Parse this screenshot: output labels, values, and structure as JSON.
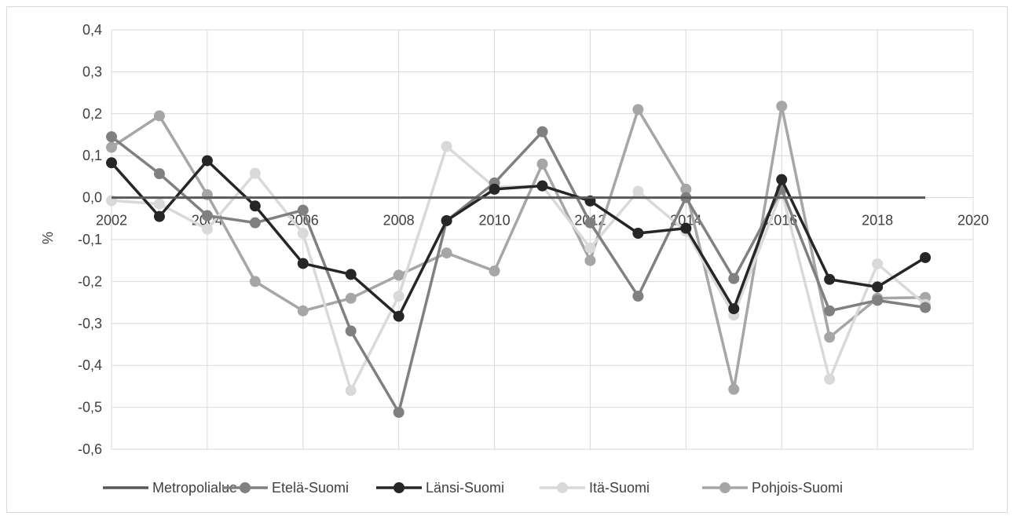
{
  "chart_data": {
    "type": "line",
    "title": "",
    "xlabel": "",
    "ylabel": "%",
    "xlim": [
      2002,
      2020
    ],
    "ylim": [
      -0.6,
      0.4
    ],
    "x_ticks": [
      2002,
      2004,
      2006,
      2008,
      2010,
      2012,
      2014,
      2016,
      2018,
      2020
    ],
    "x_tick_labels": [
      "2002",
      "2004",
      "2006",
      "2008",
      "2010",
      "2012",
      "2014",
      "2016",
      "2018",
      "2020"
    ],
    "y_ticks": [
      0.4,
      0.3,
      0.2,
      0.1,
      0.0,
      -0.1,
      -0.2,
      -0.3,
      -0.4,
      -0.5,
      -0.6
    ],
    "y_tick_labels": [
      "0,4",
      "0,3",
      "0,2",
      "0,1",
      "0,0",
      "-0,1",
      "-0,2",
      "-0,3",
      "-0,4",
      "-0,5",
      "-0,6"
    ],
    "grid": "vertical and horizontal",
    "legend_position": "bottom",
    "x": [
      2002,
      2003,
      2004,
      2005,
      2006,
      2007,
      2008,
      2009,
      2010,
      2011,
      2012,
      2013,
      2014,
      2015,
      2016,
      2017,
      2018,
      2019
    ],
    "series": [
      {
        "name": "Metropolialue",
        "color": "#595959",
        "markers": false,
        "values": [
          0,
          0,
          0,
          0,
          0,
          0,
          0,
          0,
          0,
          0,
          0,
          0,
          0,
          0,
          0,
          0,
          0,
          0
        ]
      },
      {
        "name": "Etelä-Suomi",
        "color": "#808080",
        "markers": true,
        "values": [
          0.145,
          0.057,
          -0.043,
          -0.06,
          -0.03,
          -0.318,
          -0.512,
          -0.055,
          0.035,
          0.157,
          -0.06,
          -0.235,
          0.0,
          -0.193,
          0.02,
          -0.27,
          -0.245,
          -0.262
        ]
      },
      {
        "name": "Länsi-Suomi",
        "color": "#262626",
        "markers": true,
        "values": [
          0.083,
          -0.045,
          0.088,
          -0.02,
          -0.157,
          -0.183,
          -0.283,
          -0.055,
          0.02,
          0.028,
          -0.008,
          -0.085,
          -0.073,
          -0.265,
          0.043,
          -0.195,
          -0.213,
          -0.143
        ]
      },
      {
        "name": "Itä-Suomi",
        "color": "#d9d9d9",
        "markers": true,
        "values": [
          -0.007,
          -0.015,
          -0.075,
          0.058,
          -0.085,
          -0.46,
          -0.235,
          0.122,
          0.025,
          0.028,
          -0.12,
          0.015,
          -0.08,
          -0.28,
          0.015,
          -0.433,
          -0.158,
          -0.255
        ]
      },
      {
        "name": "Pohjois-Suomi",
        "color": "#a6a6a6",
        "markers": true,
        "values": [
          0.12,
          0.195,
          0.007,
          -0.2,
          -0.27,
          -0.24,
          -0.185,
          -0.132,
          -0.175,
          0.08,
          -0.15,
          0.21,
          0.02,
          -0.457,
          0.218,
          -0.333,
          -0.24,
          -0.238
        ]
      }
    ]
  }
}
